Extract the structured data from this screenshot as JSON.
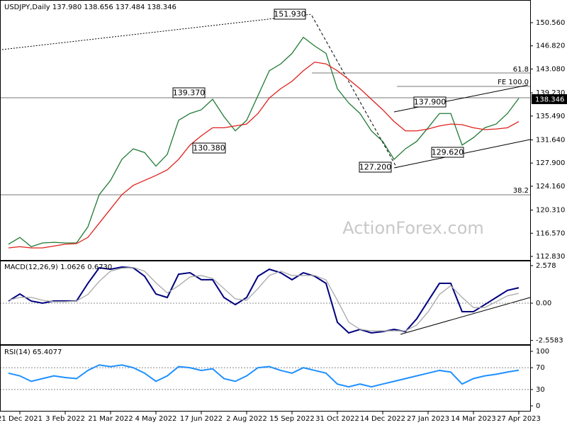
{
  "chart_data": [
    {
      "type": "line",
      "title": "USDJPY,Daily  137.980 138.656 137.484 138.346",
      "categories": [
        null,
        "21 Dec 2021",
        null,
        null,
        null,
        "3 Feb 2022",
        null,
        null,
        null,
        "21 Mar 2022",
        null,
        null,
        null,
        "4 May 2022",
        null,
        null,
        null,
        "17 Jun 2022",
        null,
        null,
        null,
        "2 Aug 2022",
        null,
        null,
        null,
        "15 Sep 2022",
        null,
        null,
        null,
        "31 Oct 2022",
        null,
        null,
        null,
        "14 Dec 2022",
        null,
        null,
        null,
        "27 Jan 2023",
        null,
        null,
        null,
        "14 Mar 2023",
        null,
        null,
        null,
        "27 Apr 2023"
      ],
      "series": [
        {
          "color": "#1f7a35",
          "values": [
            114.8,
            115.9,
            114.4,
            115.0,
            115.1,
            115.0,
            115.0,
            117.6,
            122.8,
            125.1,
            128.5,
            130.2,
            129.6,
            127.4,
            129.3,
            134.8,
            135.9,
            136.5,
            138.2,
            135.4,
            133.1,
            134.8,
            138.8,
            142.8,
            143.9,
            145.6,
            148.2,
            146.8,
            145.6,
            139.9,
            137.6,
            135.9,
            133.1,
            131.4,
            128.5,
            130.2,
            131.4,
            133.6,
            135.9,
            135.9,
            130.8,
            132.0,
            133.6,
            134.2,
            135.9,
            138.35
          ]
        },
        {
          "color": "#e0201b",
          "values": [
            114.2,
            114.4,
            114.2,
            114.2,
            114.5,
            114.8,
            114.9,
            115.9,
            118.2,
            120.5,
            122.8,
            124.3,
            125.1,
            125.9,
            126.8,
            128.5,
            130.8,
            132.3,
            133.6,
            133.6,
            133.9,
            134.2,
            135.9,
            138.4,
            139.9,
            141.1,
            142.8,
            144.2,
            143.9,
            142.8,
            141.4,
            139.9,
            138.2,
            136.5,
            134.6,
            133.1,
            133.1,
            133.4,
            133.9,
            134.2,
            134.1,
            133.6,
            133.3,
            133.4,
            133.6,
            134.6
          ]
        }
      ],
      "ylim": [
        112.26,
        153.99
      ],
      "yticks": [
        {
          "value": 150.56,
          "label": "150.560"
        },
        {
          "value": 146.82,
          "label": "146.820"
        },
        {
          "value": 143.08,
          "label": "143.080"
        },
        {
          "value": 139.23,
          "label": "139.230"
        },
        {
          "value": 135.49,
          "label": "135.490"
        },
        {
          "value": 131.64,
          "label": "131.640"
        },
        {
          "value": 127.9,
          "label": "127.900"
        },
        {
          "value": 124.16,
          "label": "124.160"
        },
        {
          "value": 120.31,
          "label": "120.310"
        },
        {
          "value": 116.57,
          "label": "116.570"
        },
        {
          "value": 112.83,
          "label": "112.830"
        }
      ],
      "grid": false,
      "annotations": [
        "151.930",
        "139.370",
        "130.380",
        "137.900",
        "127.200",
        "129.620",
        "61.8",
        "FE 100.0",
        "38.2",
        "138.346"
      ],
      "watermark": "ActionForex.com"
    },
    {
      "type": "line",
      "title": "MACD(12,26,9) 1.0626 0.6730",
      "series": [
        {
          "color": "#00007f",
          "values": [
            0.15,
            0.63,
            0.15,
            0,
            0.15,
            0.15,
            0.15,
            1.36,
            2.43,
            2.33,
            2.48,
            2.43,
            1.85,
            0.63,
            0.39,
            1.99,
            2.09,
            1.61,
            1.61,
            0.39,
            -0.1,
            0.39,
            1.85,
            2.33,
            2.09,
            1.61,
            2.09,
            1.85,
            1.36,
            -1.31,
            -2.04,
            -1.8,
            -2.04,
            -1.95,
            -1.8,
            -1.95,
            -1.07,
            0.15,
            1.36,
            1.36,
            -0.58,
            -0.58,
            -0.1,
            0.39,
            0.88,
            1.06
          ]
        },
        {
          "color": "#a8a8a8",
          "values": [
            0.2,
            0.4,
            0.4,
            0.2,
            0.1,
            0.1,
            0.15,
            0.6,
            1.5,
            2.2,
            2.4,
            2.45,
            2.2,
            1.4,
            0.7,
            1.2,
            1.8,
            1.9,
            1.7,
            1.0,
            0.3,
            0.2,
            1.0,
            1.9,
            2.2,
            1.9,
            1.9,
            1.9,
            1.6,
            0.2,
            -1.3,
            -1.8,
            -1.9,
            -1.9,
            -1.9,
            -1.9,
            -1.5,
            -0.6,
            0.6,
            1.2,
            0.4,
            -0.3,
            -0.3,
            0.1,
            0.5,
            0.673
          ]
        }
      ],
      "ylim": [
        -2.82,
        2.87
      ],
      "yticks": [
        2.578,
        {
          "value": 0,
          "label": "0.00"
        },
        -2.5583
      ],
      "grid": true
    },
    {
      "type": "line",
      "title": "RSI(14) 65.4077",
      "series": [
        {
          "color": "#1e90ff",
          "values": [
            60,
            55,
            45,
            50,
            55,
            52,
            50,
            65,
            75,
            72,
            75,
            70,
            60,
            45,
            55,
            72,
            70,
            65,
            68,
            50,
            45,
            55,
            70,
            72,
            65,
            60,
            70,
            65,
            60,
            40,
            35,
            40,
            35,
            40,
            45,
            50,
            55,
            60,
            65,
            62,
            40,
            50,
            55,
            58,
            62,
            65.41
          ]
        }
      ],
      "ylim": [
        -9.1,
        110.4
      ],
      "yticks": [
        100,
        70,
        30,
        0
      ],
      "grid": true
    }
  ]
}
